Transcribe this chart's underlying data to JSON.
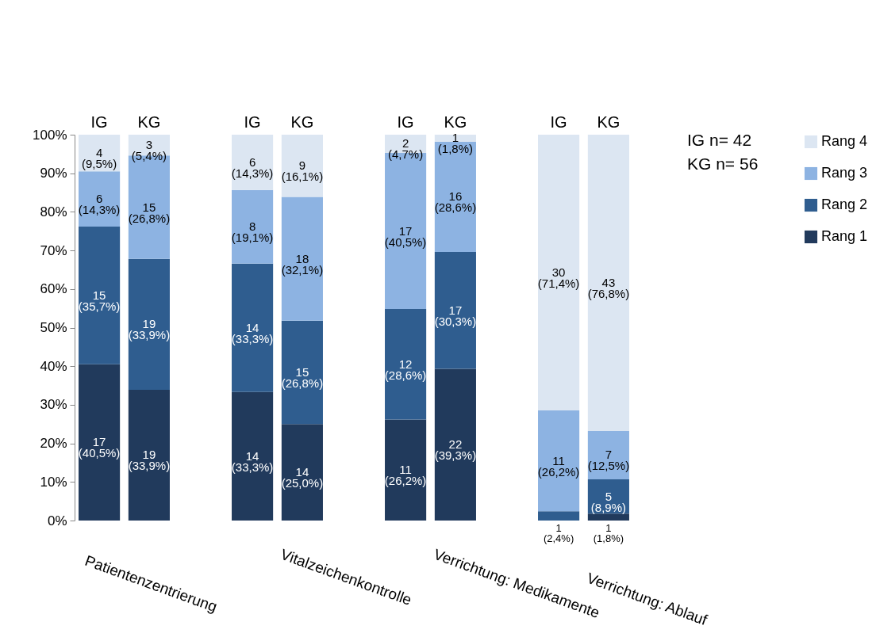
{
  "chart_data": [
    {
      "type": "bar",
      "stacked": true,
      "xlabel": "Patientenzentrierung",
      "categories": [
        "IG",
        "KG"
      ],
      "ylim": [
        0,
        100
      ],
      "yticks": [
        {
          "value": 0,
          "label": "0%"
        },
        {
          "value": 10,
          "label": "10%"
        },
        {
          "value": 20,
          "label": "20%"
        },
        {
          "value": 30,
          "label": "30%"
        },
        {
          "value": 40,
          "label": "40%"
        },
        {
          "value": 50,
          "label": "50%"
        },
        {
          "value": 60,
          "label": "60%"
        },
        {
          "value": 70,
          "label": "70%"
        },
        {
          "value": 80,
          "label": "80%"
        },
        {
          "value": 90,
          "label": "90%"
        },
        {
          "value": 100,
          "label": "100%"
        }
      ],
      "grid": false,
      "series": [
        {
          "color": "#213a5c",
          "values": [
            40.5,
            33.9
          ],
          "value_labels": [
            "17\n(40,5%)",
            "19\n(33,9%)"
          ]
        },
        {
          "color": "#2f5d8f",
          "values": [
            35.7,
            33.9
          ],
          "value_labels": [
            "15\n(35,7%)",
            "19\n(33,9%)"
          ]
        },
        {
          "color": "#8db3e2",
          "values": [
            14.3,
            26.8
          ],
          "value_labels": [
            "6\n(14,3%)",
            "15\n(26,8%)"
          ]
        },
        {
          "color": "#dce6f2",
          "values": [
            9.5,
            5.4
          ],
          "value_labels": [
            "4\n(9,5%)",
            "3\n(5,4%)"
          ]
        }
      ]
    },
    {
      "type": "bar",
      "stacked": true,
      "xlabel": "Vitalzeichenkontrolle",
      "categories": [
        "IG",
        "KG"
      ],
      "ylim": [
        0,
        100
      ],
      "tick_labels": "x",
      "grid": false,
      "series": [
        {
          "color": "#213a5c",
          "values": [
            33.3,
            25.0
          ],
          "value_labels": [
            "14\n(33,3%)",
            "14\n(25,0%)"
          ]
        },
        {
          "color": "#2f5d8f",
          "values": [
            33.3,
            26.8
          ],
          "value_labels": [
            "14\n(33,3%)",
            "15\n(26,8%)"
          ]
        },
        {
          "color": "#8db3e2",
          "values": [
            19.1,
            32.1
          ],
          "value_labels": [
            "8\n(19,1%)",
            "18\n(32,1%)"
          ]
        },
        {
          "color": "#dce6f2",
          "values": [
            14.3,
            16.1
          ],
          "value_labels": [
            "6\n(14,3%)",
            "9\n(16,1%)"
          ]
        }
      ]
    },
    {
      "type": "bar",
      "stacked": true,
      "xlabel": "Verrichtung: Medikamente",
      "categories": [
        "IG",
        "KG"
      ],
      "ylim": [
        0,
        100
      ],
      "tick_labels": "x",
      "grid": false,
      "series": [
        {
          "color": "#213a5c",
          "values": [
            26.2,
            39.3
          ],
          "value_labels": [
            "11\n(26,2%)",
            "22\n(39,3%)"
          ]
        },
        {
          "color": "#2f5d8f",
          "values": [
            28.6,
            30.3
          ],
          "value_labels": [
            "12\n(28,6%)",
            "17\n(30,3%)"
          ]
        },
        {
          "color": "#8db3e2",
          "values": [
            40.5,
            28.6
          ],
          "value_labels": [
            "17\n(40,5%)",
            "16\n(28,6%)"
          ]
        },
        {
          "color": "#dce6f2",
          "values": [
            4.7,
            1.8
          ],
          "value_labels": [
            "2\n(4,7%)",
            "1\n(1,8%)"
          ]
        }
      ]
    },
    {
      "type": "bar",
      "stacked": true,
      "xlabel": "Verrichtung: Ablauf",
      "categories": [
        "IG",
        "KG"
      ],
      "ylim": [
        0,
        100
      ],
      "tick_labels": "x",
      "grid": false,
      "legend": "right",
      "annotations": [
        "IG n= 42",
        "KG n= 56"
      ],
      "series": [
        {
          "name": "Rang 1",
          "color": "#213a5c",
          "values": [
            0,
            1.8
          ],
          "value_labels": [
            null,
            "1\n(1,8%)"
          ]
        },
        {
          "name": "Rang 2",
          "color": "#2f5d8f",
          "values": [
            2.4,
            8.9
          ],
          "value_labels": [
            "1\n(2,4%)",
            "5\n(8,9%)"
          ]
        },
        {
          "name": "Rang 3",
          "color": "#8db3e2",
          "values": [
            26.2,
            12.5
          ],
          "value_labels": [
            "11\n(26,2%)",
            "7\n(12,5%)"
          ]
        },
        {
          "name": "Rang 4",
          "color": "#dce6f2",
          "values": [
            71.4,
            76.8
          ],
          "value_labels": [
            "30\n(71,4%)",
            "43\n(76,8%)"
          ]
        }
      ]
    }
  ]
}
